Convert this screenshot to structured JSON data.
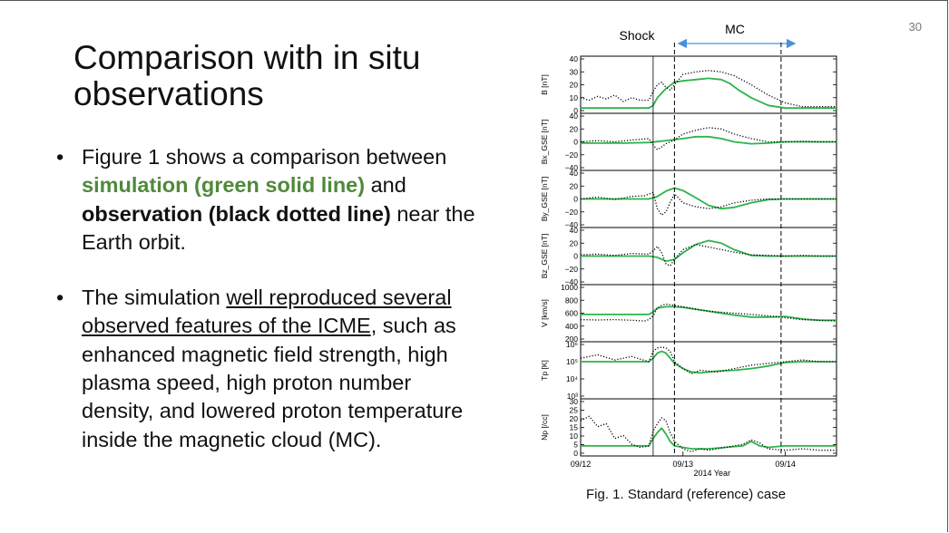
{
  "slide": {
    "number": "30",
    "title_line1": "Comparison with in situ",
    "title_line2": "observations"
  },
  "bullets": {
    "b1": {
      "t1": "Figure 1 shows a comparison between ",
      "t2": "simulation (green solid line)",
      "t3": " and ",
      "t4": "observation (black dotted line)",
      "t5": " near the Earth orbit."
    },
    "b2": {
      "t1": "The simulation ",
      "t2": "well reproduced several observed features of the ICME",
      "t3": ", such as enhanced magnetic field strength, high plasma speed, high proton number density, and lowered proton temperature inside the magnetic cloud (MC)."
    }
  },
  "figure": {
    "caption": "Fig. 1. Standard (reference) case",
    "shock_label": "Shock",
    "mc_label": "MC",
    "colors": {
      "simulation": "#2db34a",
      "observation": "#000000",
      "arrow": "#4a90d9"
    }
  },
  "chart_data": {
    "type": "line",
    "xlabel": "2014 Year",
    "x_ticks": [
      "09/12",
      "09/13",
      "09/14"
    ],
    "x_range_hours": [
      0,
      60
    ],
    "markers": {
      "shock_hour": 17,
      "mc_start_hour": 22,
      "mc_end_hour": 47
    },
    "panels": [
      {
        "ylabel": "B [nT]",
        "ticks": [
          "40",
          "30",
          "20",
          "10",
          "0"
        ],
        "ylim": [
          0,
          40
        ],
        "series": [
          {
            "style": "simulation",
            "x": [
              0,
              8,
              16,
              17,
              18,
              20,
              22,
              24,
              27,
              30,
              33,
              35,
              37,
              40,
              44,
              48,
              52,
              56,
              60
            ],
            "y": [
              2,
              2,
              2,
              4,
              10,
              17,
              22,
              23,
              24,
              25,
              24,
              21,
              16,
              10,
              4,
              2,
              2,
              2,
              2
            ]
          },
          {
            "style": "observation",
            "x": [
              0,
              2,
              4,
              6,
              8,
              10,
              12,
              14,
              16,
              17,
              18,
              19,
              20,
              21,
              22,
              24,
              27,
              30,
              33,
              36,
              40,
              44,
              48,
              52,
              56,
              60
            ],
            "y": [
              10,
              8,
              11,
              9,
              12,
              7,
              10,
              8,
              8,
              15,
              20,
              22,
              18,
              16,
              20,
              28,
              30,
              31,
              30,
              27,
              20,
              12,
              6,
              3,
              3,
              3
            ]
          }
        ]
      },
      {
        "ylabel": "Bx_GSE [nT]",
        "ticks": [
          "40",
          "20",
          "0",
          "−20",
          "−40"
        ],
        "ylim": [
          -40,
          40
        ],
        "series": [
          {
            "style": "simulation",
            "x": [
              0,
              10,
              16,
              20,
              24,
              27,
              30,
              33,
              36,
              40,
              44,
              48,
              52,
              56,
              60
            ],
            "y": [
              -2,
              -2,
              -1,
              2,
              5,
              8,
              8,
              5,
              0,
              -3,
              -2,
              0,
              0,
              0,
              0
            ]
          },
          {
            "style": "observation",
            "x": [
              0,
              4,
              8,
              12,
              16,
              17,
              18,
              19,
              20,
              21,
              22,
              24,
              27,
              30,
              33,
              36,
              40,
              44,
              48,
              52,
              56,
              60
            ],
            "y": [
              0,
              2,
              0,
              3,
              5,
              -5,
              -12,
              -8,
              -3,
              0,
              3,
              12,
              18,
              22,
              20,
              12,
              5,
              0,
              0,
              1,
              0,
              0
            ]
          }
        ]
      },
      {
        "ylabel": "By_GSE [nT]",
        "ticks": [
          "40",
          "20",
          "0",
          "−20",
          "−40"
        ],
        "ylim": [
          -40,
          40
        ],
        "series": [
          {
            "style": "simulation",
            "x": [
              0,
              10,
              16,
              18,
              20,
              22,
              24,
              27,
              30,
              33,
              36,
              40,
              44,
              48,
              52,
              56,
              60
            ],
            "y": [
              0,
              0,
              0,
              4,
              12,
              17,
              13,
              2,
              -10,
              -15,
              -13,
              -6,
              -1,
              0,
              0,
              0,
              0
            ]
          },
          {
            "style": "observation",
            "x": [
              0,
              4,
              8,
              12,
              15,
              17,
              18,
              19,
              20,
              21,
              22,
              24,
              27,
              30,
              33,
              36,
              40,
              44,
              48,
              52,
              56,
              60
            ],
            "y": [
              0,
              3,
              -1,
              4,
              5,
              10,
              -15,
              -25,
              -20,
              -5,
              8,
              -6,
              -12,
              -15,
              -12,
              -6,
              -2,
              0,
              0,
              0,
              0,
              0
            ]
          }
        ]
      },
      {
        "ylabel": "Bz_GSE [nT]",
        "ticks": [
          "40",
          "20",
          "0",
          "−20",
          "−40"
        ],
        "ylim": [
          -40,
          40
        ],
        "series": [
          {
            "style": "simulation",
            "x": [
              0,
              10,
              16,
              18,
              20,
              22,
              24,
              27,
              30,
              33,
              36,
              40,
              44,
              48,
              52,
              56,
              60
            ],
            "y": [
              0,
              0,
              0,
              -2,
              -8,
              -5,
              5,
              18,
              24,
              20,
              10,
              1,
              0,
              0,
              0,
              0,
              0
            ]
          },
          {
            "style": "observation",
            "x": [
              0,
              4,
              8,
              12,
              16,
              17,
              18,
              19,
              20,
              21,
              22,
              24,
              27,
              30,
              33,
              36,
              40,
              44,
              48,
              52,
              56,
              60
            ],
            "y": [
              2,
              3,
              1,
              4,
              3,
              8,
              15,
              5,
              -12,
              -15,
              -5,
              10,
              18,
              14,
              10,
              6,
              2,
              1,
              0,
              1,
              0,
              0
            ]
          }
        ]
      },
      {
        "ylabel": "V [km/s]",
        "ticks": [
          "1000",
          "800",
          "600",
          "400",
          "200"
        ],
        "ylim": [
          200,
          1000
        ],
        "series": [
          {
            "style": "simulation",
            "x": [
              0,
              8,
              14,
              16,
              17,
              18,
              20,
              22,
              24,
              28,
              32,
              36,
              40,
              44,
              48,
              52,
              56,
              60
            ],
            "y": [
              580,
              580,
              580,
              580,
              620,
              680,
              700,
              700,
              690,
              650,
              610,
              570,
              540,
              540,
              550,
              510,
              490,
              490
            ]
          },
          {
            "style": "observation",
            "x": [
              0,
              4,
              8,
              12,
              15,
              16,
              17,
              18,
              19,
              20,
              22,
              24,
              28,
              32,
              36,
              40,
              44,
              48,
              52,
              56,
              60
            ],
            "y": [
              500,
              495,
              500,
              490,
              480,
              500,
              560,
              680,
              720,
              740,
              720,
              700,
              650,
              620,
              600,
              580,
              560,
              530,
              500,
              490,
              480
            ]
          }
        ]
      },
      {
        "ylabel": "Tp [K]",
        "ticks": [
          "10⁶",
          "10⁵",
          "10⁴",
          "10³"
        ],
        "ylim": [
          3,
          6
        ],
        "series": [
          {
            "style": "simulation",
            "x": [
              0,
              8,
              16,
              17,
              18,
              19,
              20,
              21,
              22,
              24,
              26,
              28,
              32,
              36,
              40,
              44,
              48,
              52,
              56,
              60
            ],
            "y": [
              5.0,
              5.0,
              5.0,
              5.2,
              5.5,
              5.6,
              5.5,
              5.2,
              4.9,
              4.6,
              4.4,
              4.35,
              4.45,
              4.5,
              4.6,
              4.75,
              4.95,
              5.0,
              5.0,
              5.0
            ]
          },
          {
            "style": "observation",
            "x": [
              0,
              4,
              8,
              12,
              16,
              17,
              18,
              19,
              20,
              21,
              22,
              24,
              26,
              28,
              32,
              36,
              40,
              44,
              48,
              52,
              56,
              60
            ],
            "y": [
              5.2,
              5.4,
              5.1,
              5.3,
              5.0,
              5.6,
              5.8,
              5.85,
              5.8,
              5.6,
              5.0,
              4.6,
              4.3,
              4.5,
              4.4,
              4.6,
              4.8,
              4.9,
              5.0,
              5.1,
              5.0,
              5.0
            ]
          }
        ]
      },
      {
        "ylabel": "Np [/cc]",
        "ticks": [
          "30",
          "25",
          "20",
          "15",
          "10",
          "5",
          "0"
        ],
        "ylim": [
          0,
          35
        ],
        "series": [
          {
            "style": "simulation",
            "x": [
              0,
              6,
              12,
              16,
              17,
              18,
              19,
              20,
              21,
              22,
              24,
              26,
              30,
              34,
              38,
              40,
              42,
              44,
              48,
              52,
              56,
              60
            ],
            "y": [
              5,
              5,
              5,
              5,
              10,
              14,
              17,
              13,
              8,
              5,
              4,
              3,
              3,
              4,
              5,
              8,
              5,
              4,
              5,
              5,
              5,
              5
            ]
          },
          {
            "style": "observation",
            "x": [
              0,
              2,
              4,
              6,
              8,
              10,
              12,
              14,
              16,
              17,
              18,
              19,
              20,
              21,
              22,
              24,
              26,
              28,
              30,
              34,
              38,
              40,
              42,
              44,
              48,
              52,
              56,
              60
            ],
            "y": [
              22,
              25,
              18,
              20,
              10,
              12,
              6,
              4,
              5,
              15,
              20,
              24,
              22,
              14,
              8,
              3,
              1,
              3,
              2,
              4,
              6,
              9,
              7,
              3,
              2,
              3,
              2,
              2
            ]
          }
        ]
      }
    ]
  }
}
